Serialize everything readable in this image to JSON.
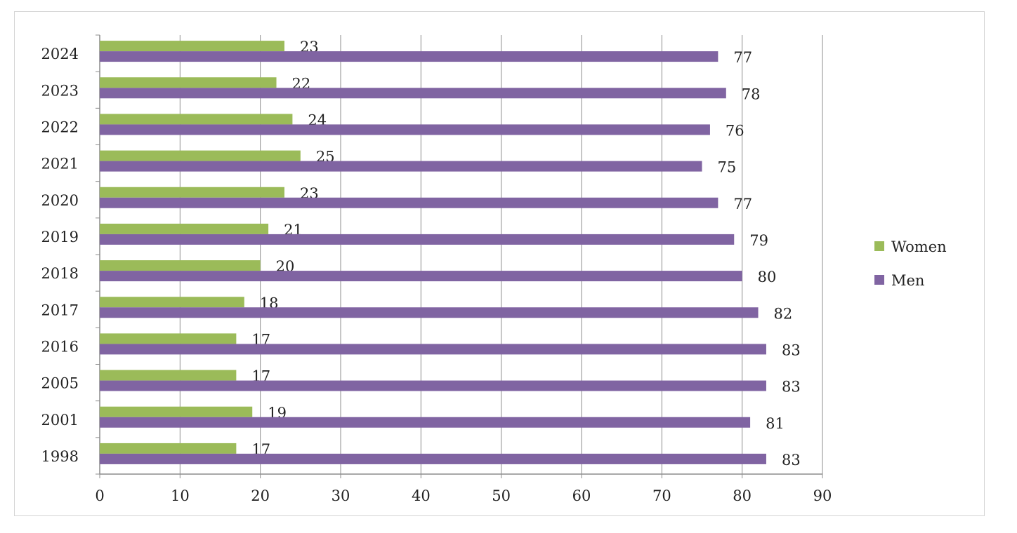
{
  "chart_data": {
    "type": "bar",
    "orientation": "horizontal",
    "categories": [
      "1998",
      "2001",
      "2005",
      "2016",
      "2017",
      "2018",
      "2019",
      "2020",
      "2021",
      "2022",
      "2023",
      "2024"
    ],
    "series": [
      {
        "name": "Women",
        "color": "#9bbb59",
        "values": [
          17,
          19,
          17,
          17,
          18,
          20,
          21,
          23,
          25,
          24,
          22,
          23
        ]
      },
      {
        "name": "Men",
        "color": "#8064a2",
        "values": [
          83,
          81,
          83,
          83,
          82,
          80,
          79,
          77,
          75,
          76,
          78,
          77
        ]
      }
    ],
    "xlim": [
      0,
      90
    ],
    "xticks": [
      "0",
      "10",
      "20",
      "30",
      "40",
      "50",
      "60",
      "70",
      "80",
      "90"
    ],
    "title": "",
    "xlabel": "",
    "ylabel": "",
    "grid": "vertical",
    "legend_position": "right",
    "data_labels": true
  }
}
